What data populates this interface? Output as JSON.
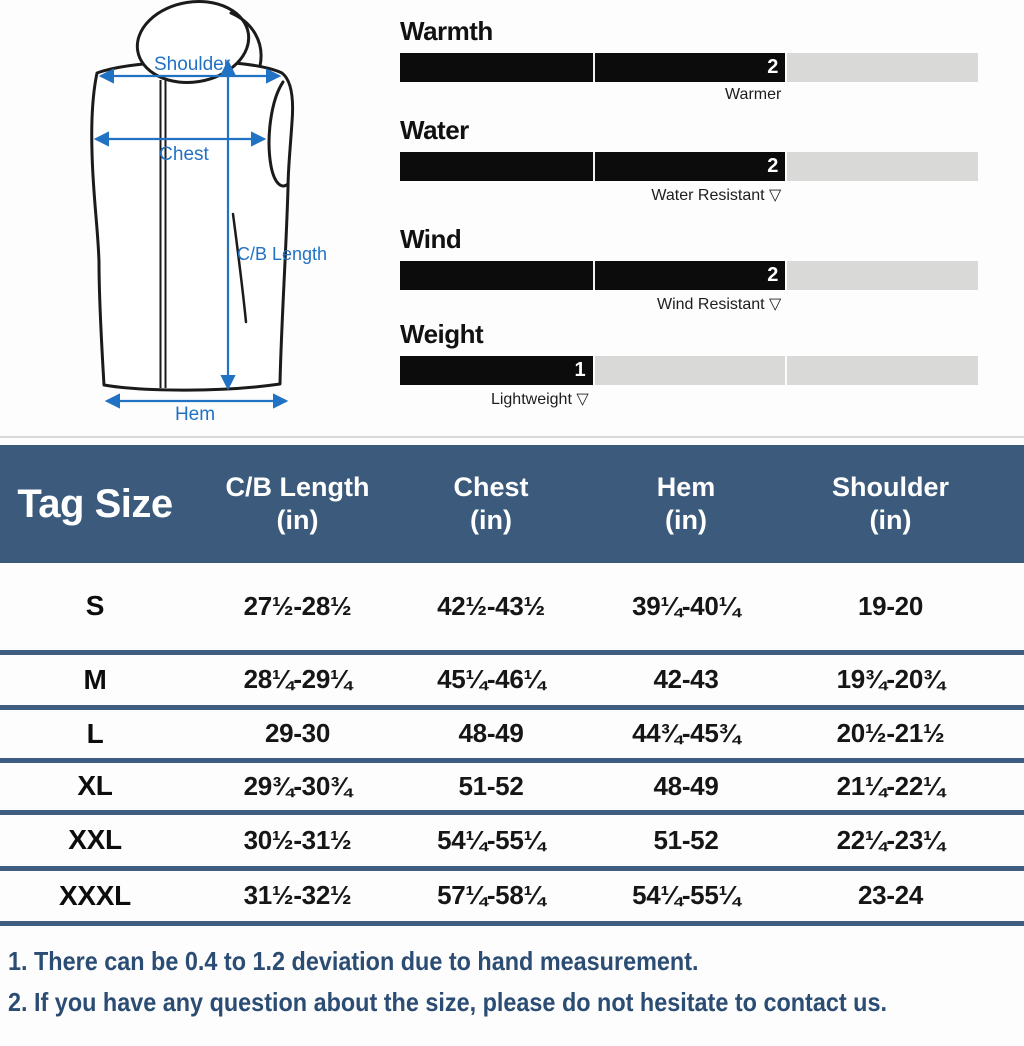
{
  "colors": {
    "accent_blue": "#2272c3",
    "notes_navy": "#2b4c73",
    "table_header_bg": "#3b5a7c",
    "row_separator": "#3e5d80",
    "bar_fill": "#0c0c0c",
    "bar_track": "#d9d9d7"
  },
  "diagram": {
    "labels": {
      "shoulder": "Shoulder",
      "chest": "Chest",
      "cb_length": "C/B Length",
      "hem": "Hem"
    }
  },
  "ratings": {
    "max": 3,
    "items": [
      {
        "name": "Warmth",
        "value": 2,
        "caption": "Warmer"
      },
      {
        "name": "Water",
        "value": 2,
        "caption": "Water Resistant ▽"
      },
      {
        "name": "Wind",
        "value": 2,
        "caption": "Wind Resistant ▽"
      },
      {
        "name": "Weight",
        "value": 1,
        "caption": "Lightweight ▽"
      }
    ]
  },
  "size_table": {
    "columns": [
      {
        "label": "Tag Size",
        "unit": ""
      },
      {
        "label": "C/B Length",
        "unit": "(in)"
      },
      {
        "label": "Chest",
        "unit": "(in)"
      },
      {
        "label": "Hem",
        "unit": "(in)"
      },
      {
        "label": "Shoulder",
        "unit": "(in)"
      }
    ],
    "rows": [
      {
        "size": "S",
        "values": [
          "27½-28½",
          "42½-43½",
          "39¼-40¼",
          "19-20"
        ]
      },
      {
        "size": "M",
        "values": [
          "28¼-29¼",
          "45¼-46¼",
          "42-43",
          "19¾-20¾"
        ]
      },
      {
        "size": "L",
        "values": [
          "29-30",
          "48-49",
          "44¾-45¾",
          "20½-21½"
        ]
      },
      {
        "size": "XL",
        "values": [
          "29¾-30¾",
          "51-52",
          "48-49",
          "21¼-22¼"
        ]
      },
      {
        "size": "XXL",
        "values": [
          "30½-31½",
          "54¼-55¼",
          "51-52",
          "22¼-23¼"
        ]
      },
      {
        "size": "XXXL",
        "values": [
          "31½-32½",
          "57¼-58¼",
          "54¼-55¼",
          "23-24"
        ]
      }
    ]
  },
  "notes": [
    "1. There can be 0.4 to 1.2 deviation due to hand measurement.",
    "2. If you have any question about the size, please do not hesitate to contact us."
  ]
}
